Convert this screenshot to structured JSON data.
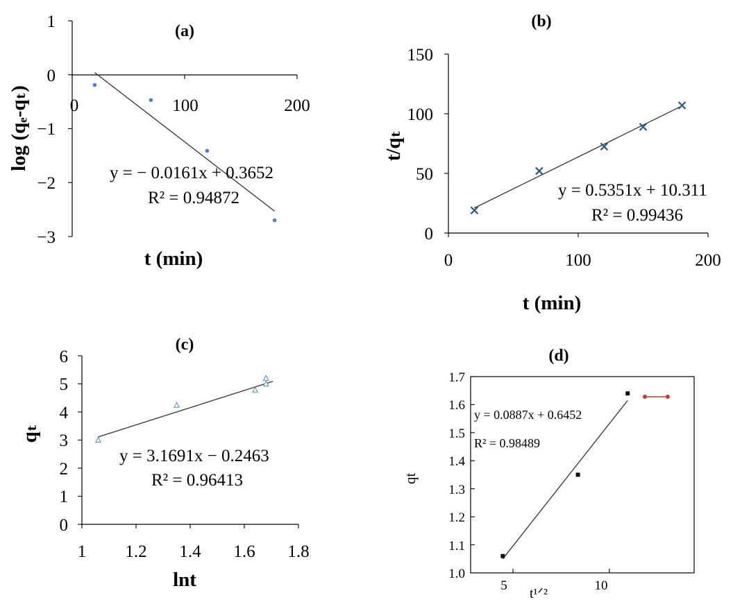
{
  "chart_data": [
    {
      "id": "a",
      "type": "scatter",
      "title": "(a)",
      "xlabel": "t (min)",
      "ylabel": "log (qₑ-qₜ)",
      "xlim": [
        0,
        200
      ],
      "ylim": [
        -3,
        1
      ],
      "xticks": [
        "0",
        "100",
        "200"
      ],
      "yticks": [
        "1",
        "0",
        "−1",
        "−2",
        "−3"
      ],
      "grid": false,
      "marker": "circle",
      "marker_color": "#4f7fd1",
      "points": [
        [
          20,
          -0.19
        ],
        [
          70,
          -0.47
        ],
        [
          120,
          -1.41
        ],
        [
          180,
          -2.7
        ]
      ],
      "fit": {
        "x": [
          20,
          180
        ],
        "y": [
          0.04,
          -2.53
        ]
      },
      "equation": "y = − 0.0161x + 0.3652",
      "r2": "R² = 0.94872"
    },
    {
      "id": "b",
      "type": "scatter",
      "title": "(b)",
      "xlabel": "t (min)",
      "ylabel": "t/qₜ",
      "xlim": [
        0,
        200
      ],
      "ylim": [
        0,
        150
      ],
      "xticks": [
        "0",
        "100",
        "200"
      ],
      "yticks": [
        "150",
        "100",
        "50",
        "0"
      ],
      "grid": false,
      "marker": "x",
      "marker_color": "#2b5c8a",
      "points": [
        [
          20,
          19
        ],
        [
          70,
          52
        ],
        [
          120,
          72.5
        ],
        [
          150,
          89
        ],
        [
          180,
          107
        ]
      ],
      "fit": {
        "x": [
          20,
          180
        ],
        "y": [
          21.0,
          106.6
        ]
      },
      "equation": "y = 0.5351x + 10.311",
      "r2": "R² = 0.99436"
    },
    {
      "id": "c",
      "type": "scatter",
      "title": "(c)",
      "xlabel": "lnt",
      "ylabel": "qₜ",
      "xlim": [
        1,
        1.8
      ],
      "ylim": [
        0,
        6
      ],
      "xticks": [
        "1",
        "1.2",
        "1.4",
        "1.6",
        "1.8"
      ],
      "yticks": [
        "6",
        "5",
        "4",
        "3",
        "2",
        "1",
        "0"
      ],
      "grid": false,
      "marker": "triangle",
      "marker_color": "#4a8fc9",
      "points": [
        [
          1.06,
          3.0
        ],
        [
          1.35,
          4.24
        ],
        [
          1.64,
          4.78
        ],
        [
          1.68,
          5.2
        ],
        [
          1.68,
          5.0
        ]
      ],
      "fit": {
        "x": [
          1.06,
          1.705
        ],
        "y": [
          3.11,
          5.09
        ]
      },
      "equation": "y = 3.1691x − 0.2463",
      "r2": "R² = 0.96413"
    },
    {
      "id": "d",
      "type": "scatter",
      "title": "(d)",
      "xlabel": "t¹ᐟ²",
      "ylabel": "qt",
      "xlim": [
        2.8,
        14.4
      ],
      "ylim": [
        1.0,
        1.7
      ],
      "xticks": [
        "5",
        "10"
      ],
      "yticks": [
        "1.7",
        "1.6",
        "1.5",
        "1.4",
        "1.3",
        "1.2",
        "1.1",
        "1.0"
      ],
      "grid": false,
      "marker": "square",
      "marker_color": "#111111",
      "points": [
        [
          4.47,
          1.06
        ],
        [
          8.37,
          1.35
        ],
        [
          10.95,
          1.64
        ]
      ],
      "fit": {
        "x": [
          4.47,
          10.95
        ],
        "y": [
          1.05,
          1.615
        ]
      },
      "equation": "y = 0.0887x + 0.6452",
      "r2": "R² = 0.98489",
      "legend_color": "#d03a2a"
    }
  ]
}
